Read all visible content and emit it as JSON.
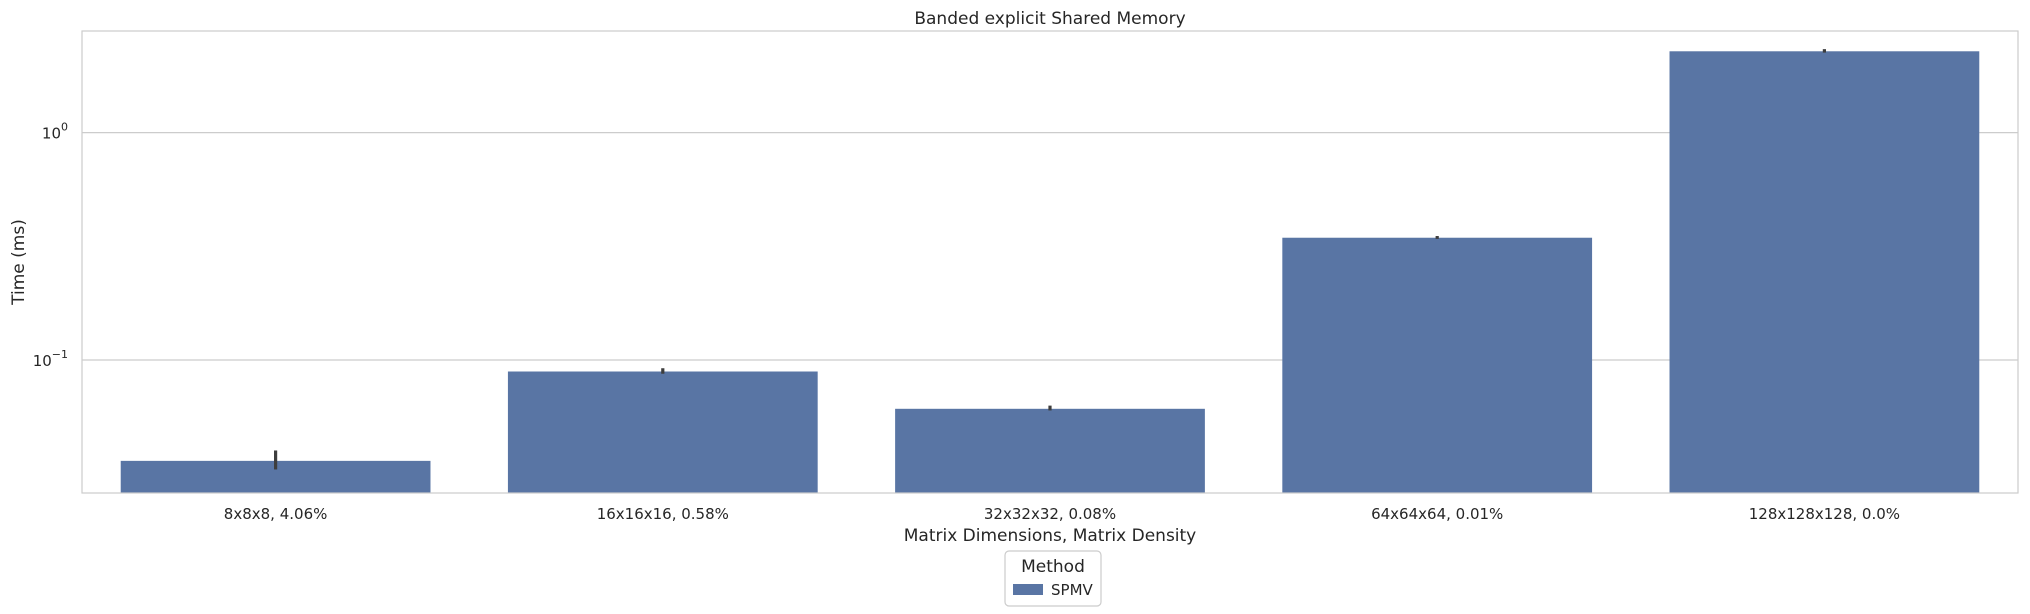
{
  "chart_data": {
    "type": "bar",
    "title": "Banded explicit Shared Memory",
    "xlabel": "Matrix Dimensions, Matrix Density",
    "ylabel": "Time (ms)",
    "yscale": "log",
    "ylim": [
      0.026,
      2.8
    ],
    "yticks": [
      {
        "value": 0.1,
        "base": "10",
        "exp": "−1"
      },
      {
        "value": 1,
        "base": "10",
        "exp": "0"
      }
    ],
    "grid": "horizontal",
    "categories": [
      "8x8x8, 4.06%",
      "16x16x16, 0.58%",
      "32x32x32, 0.08%",
      "64x64x64, 0.01%",
      "128x128x128, 0.0%"
    ],
    "series": [
      {
        "name": "SPMV",
        "color": "#5975a4",
        "values": [
          0.036,
          0.089,
          0.061,
          0.345,
          2.28
        ],
        "error_low": [
          0.033,
          0.087,
          0.06,
          0.341,
          2.25
        ],
        "error_high": [
          0.04,
          0.092,
          0.063,
          0.351,
          2.33
        ]
      }
    ],
    "legend": {
      "title": "Method",
      "position": "bottom-center"
    }
  }
}
